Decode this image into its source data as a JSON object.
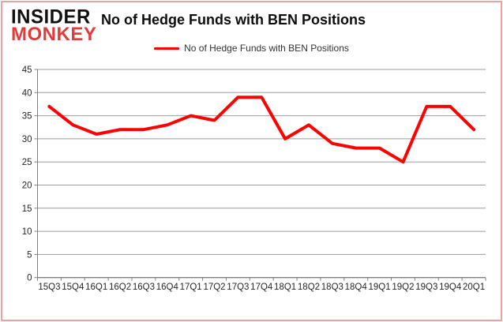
{
  "brand": {
    "line1": "INSIDER",
    "line2": "MONKEY"
  },
  "header": {
    "title": "No of Hedge Funds with BEN Positions"
  },
  "legend": {
    "label": "No of Hedge Funds with BEN Positions"
  },
  "colors": {
    "brand_black": "#111111",
    "brand_red": "#e23b3b",
    "frame_border": "#eca2a2",
    "line_red": "#ff0000",
    "grid_gray": "#9b9b9b",
    "axis_gray": "#808080",
    "tick_text": "#262626"
  },
  "chart_data": {
    "type": "line",
    "title": "No of Hedge Funds with BEN Positions",
    "categories": [
      "15Q3",
      "15Q4",
      "16Q1",
      "16Q2",
      "16Q3",
      "16Q4",
      "17Q1",
      "17Q2",
      "17Q3",
      "17Q4",
      "18Q1",
      "18Q2",
      "18Q3",
      "18Q4",
      "19Q1",
      "19Q2",
      "19Q3",
      "19Q4",
      "20Q1"
    ],
    "series": [
      {
        "name": "No of Hedge Funds with BEN Positions",
        "color": "#ff0000",
        "values": [
          37,
          33,
          31,
          32,
          32,
          33,
          35,
          34,
          39,
          39,
          30,
          33,
          29,
          28,
          28,
          25,
          37,
          37,
          32
        ]
      }
    ],
    "xlabel": "",
    "ylabel": "",
    "ylim": [
      0,
      45
    ],
    "ytick_step": 5,
    "y_tick_labels": [
      "0",
      "5",
      "10",
      "15",
      "20",
      "25",
      "30",
      "35",
      "40",
      "45"
    ],
    "grid": true,
    "legend_position": "top-center"
  }
}
